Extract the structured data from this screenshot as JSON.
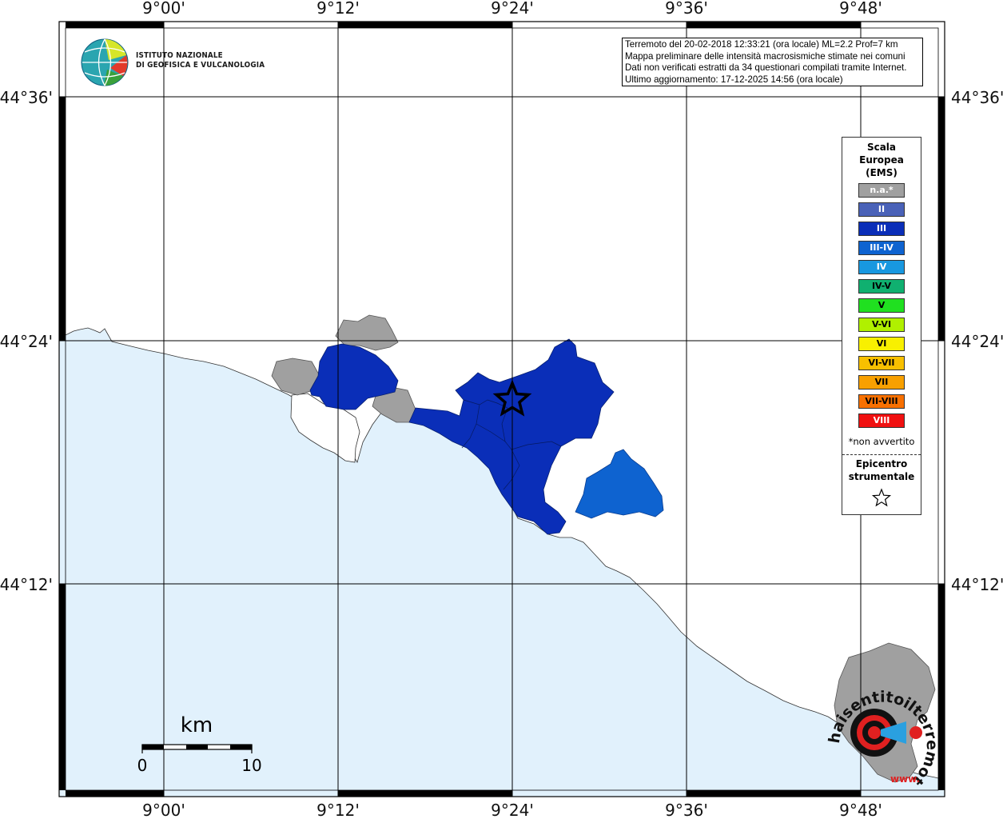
{
  "map": {
    "lon_ticks": [
      "9°00'",
      "9°12'",
      "9°24'",
      "9°36'",
      "9°48'"
    ],
    "lat_ticks": [
      "44°36'",
      "44°24'",
      "44°12'"
    ],
    "colors": {
      "sea": "#e1f1fc",
      "land": "#ffffff",
      "not_available": "#a0a0a0",
      "intensity_III": "#0a2eb8",
      "intensity_III_IV": "#0e63d0",
      "grid": "#000000"
    },
    "epicenter_marker": "star-icon"
  },
  "info": {
    "line1": "Terremoto del 20-02-2018 12:33:21 (ora locale) ML=2.2 Prof=7 km",
    "line2": "Mappa preliminare delle intensità macrosismiche stimate nei comuni",
    "line3": "Dati non verificati estratti da 34 questionari compilati tramite Internet.",
    "line4": "Ultimo aggiornamento: 17-12-2025 14:56 (ora locale)"
  },
  "logo": {
    "line1": "ISTITUTO NAZIONALE",
    "line2": "DI GEOFISICA E VULCANOLOGIA"
  },
  "legend": {
    "title_line1": "Scala",
    "title_line2": "Europea",
    "title_line3": "(EMS)",
    "items": [
      {
        "label": "n.a.*",
        "color": "#a0a0a0"
      },
      {
        "label": "II",
        "color": "#4a62b8"
      },
      {
        "label": "III",
        "color": "#0a2eb8"
      },
      {
        "label": "III-IV",
        "color": "#0e63d0"
      },
      {
        "label": "IV",
        "color": "#1898e0"
      },
      {
        "label": "IV-V",
        "color": "#10b070"
      },
      {
        "label": "V",
        "color": "#20e020"
      },
      {
        "label": "V-VI",
        "color": "#b0f000"
      },
      {
        "label": "VI",
        "color": "#f8f000"
      },
      {
        "label": "VI-VII",
        "color": "#f8c000"
      },
      {
        "label": "VII",
        "color": "#f8a000"
      },
      {
        "label": "VII-VIII",
        "color": "#f87000"
      },
      {
        "label": "VIII",
        "color": "#f01010"
      }
    ],
    "note": "*non avvertito",
    "epicenter_line1": "Epicentro",
    "epicenter_line2": "strumentale"
  },
  "scale_bar": {
    "unit": "km",
    "start": "0",
    "end": "10"
  },
  "badge": {
    "text": "haisentitoilterremoto.it",
    "prefix": "www."
  }
}
